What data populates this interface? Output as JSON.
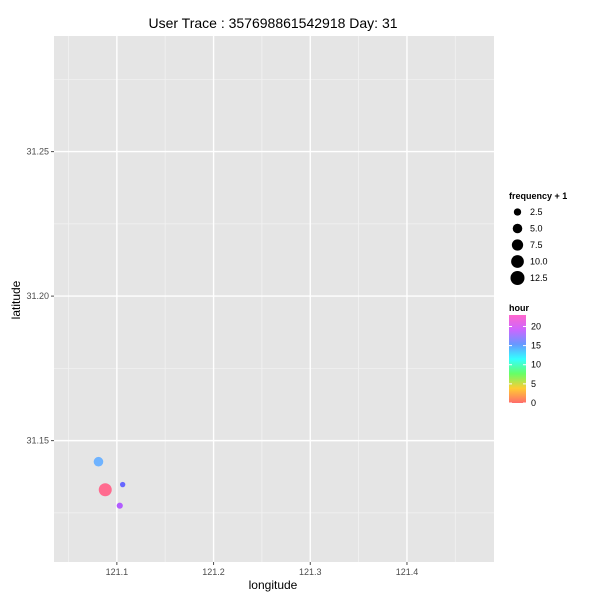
{
  "chart_data": {
    "type": "scatter",
    "title": "User Trace : 357698861542918  Day:  31",
    "xlabel": "longitude",
    "ylabel": "latitude",
    "xlim": [
      121.035,
      121.49
    ],
    "ylim": [
      31.108,
      31.29
    ],
    "x_ticks": [
      {
        "value": 121.1,
        "label": "121.1"
      },
      {
        "value": 121.2,
        "label": "121.2"
      },
      {
        "value": 121.3,
        "label": "121.3"
      },
      {
        "value": 121.4,
        "label": "121.4"
      }
    ],
    "y_ticks": [
      {
        "value": 31.15,
        "label": "31.15"
      },
      {
        "value": 31.2,
        "label": "31.2",
        "display": "31.20"
      },
      {
        "value": 31.25,
        "label": "31.25"
      }
    ],
    "grid": true,
    "background_color": "#e5e5e5",
    "grid_color": "#ffffff",
    "points": [
      {
        "longitude": 121.081,
        "latitude": 31.1427,
        "frequency_plus_1": 5.0,
        "hour": 12,
        "color": "#6fb3ff"
      },
      {
        "longitude": 121.088,
        "latitude": 31.133,
        "frequency_plus_1": 10.5,
        "hour": 22,
        "color": "#ff6b8f"
      },
      {
        "longitude": 121.106,
        "latitude": 31.1348,
        "frequency_plus_1": 1.0,
        "hour": 16,
        "color": "#6666ff"
      },
      {
        "longitude": 121.103,
        "latitude": 31.1275,
        "frequency_plus_1": 1.5,
        "hour": 17,
        "color": "#b25cff"
      }
    ],
    "legend": {
      "placement": "right",
      "size_title": "frequency + 1",
      "size_entries": [
        {
          "value": 2.5,
          "label": "2.5"
        },
        {
          "value": 5.0,
          "label": "5.0"
        },
        {
          "value": 7.5,
          "label": "7.5"
        },
        {
          "value": 10.0,
          "label": "10.0"
        },
        {
          "value": 12.5,
          "label": "12.5"
        }
      ],
      "color_title": "hour",
      "color_ticks": [
        {
          "value": 20,
          "label": "20"
        },
        {
          "value": 15,
          "label": "15"
        },
        {
          "value": 10,
          "label": "10"
        },
        {
          "value": 5,
          "label": "5"
        },
        {
          "value": 0,
          "label": "0"
        }
      ],
      "color_range": [
        0,
        23
      ],
      "color_stops": [
        "#ff6b6b",
        "#ffcc33",
        "#66ff66",
        "#33ffff",
        "#6699ff",
        "#cc66ff",
        "#ff66cc"
      ]
    }
  }
}
